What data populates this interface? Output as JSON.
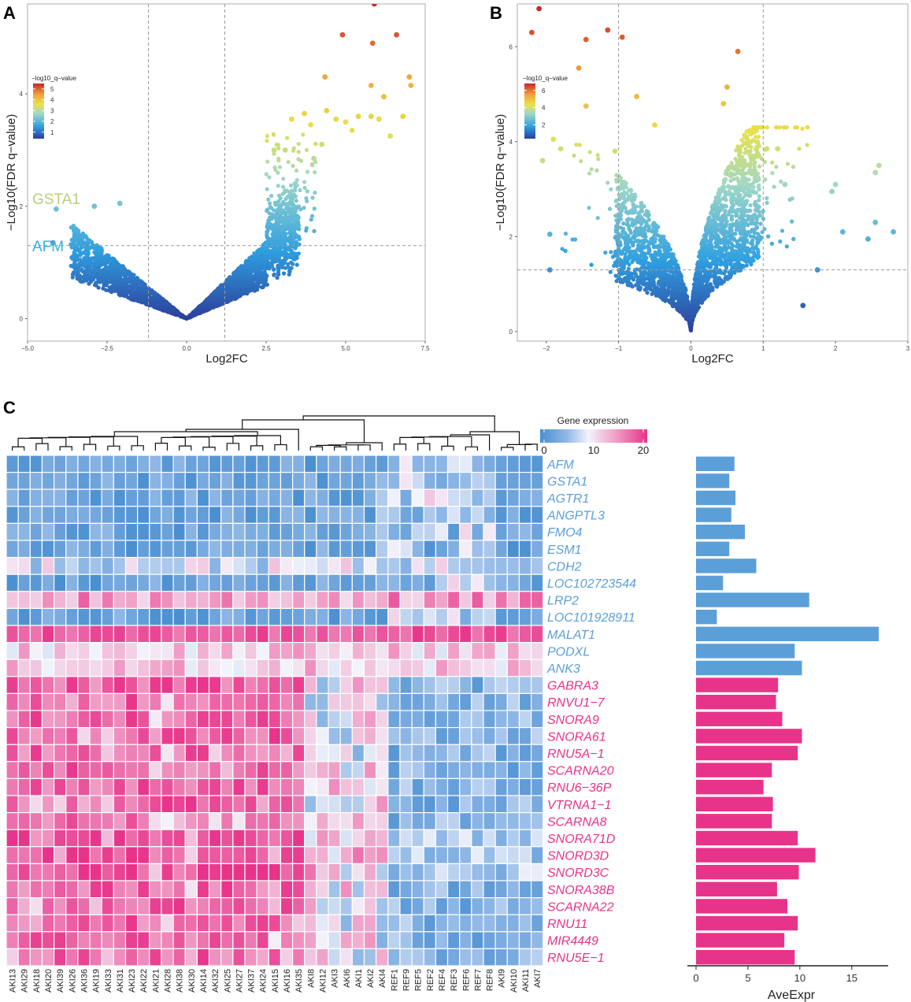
{
  "panels": {
    "a": {
      "label": "A"
    },
    "b": {
      "label": "B"
    },
    "c": {
      "label": "C"
    }
  },
  "chart_data": [
    {
      "id": "volcano_a",
      "type": "scatter",
      "xlabel": "Log2FC",
      "ylabel": "−Log10(FDR q−value)",
      "xlim": [
        -5.0,
        7.5
      ],
      "ylim": [
        -0.4,
        5.6
      ],
      "xticks": [
        -5.0,
        -2.5,
        0.0,
        2.5,
        5.0,
        7.5
      ],
      "xtick_labels": [
        "−5.0",
        "−2.5",
        "0.0",
        "2.5",
        "5.0",
        "7.5"
      ],
      "yticks": [
        0,
        2,
        4
      ],
      "fc_cutoffs": [
        -1.2,
        1.2
      ],
      "q_cutoff": 1.3,
      "legend": {
        "title": "−log10_q−value",
        "ticks": [
          5,
          4,
          3,
          2,
          1
        ],
        "range": [
          0.4,
          5.5
        ],
        "placement": "top-left"
      },
      "annotations": [
        {
          "text": "GSTA1",
          "x": -4.8,
          "y": 2.3,
          "color": "#b9cf7a"
        },
        {
          "text": "AFM",
          "x": -4.8,
          "y": 1.45,
          "color": "#3ab1e0"
        }
      ],
      "highlights": [
        {
          "x": 5.9,
          "y": 5.6
        },
        {
          "x": 6.6,
          "y": 5.05
        },
        {
          "x": 4.9,
          "y": 5.05
        },
        {
          "x": 5.85,
          "y": 4.9
        },
        {
          "x": 7.0,
          "y": 4.3
        },
        {
          "x": 7.05,
          "y": 4.15
        },
        {
          "x": 4.35,
          "y": 4.3
        },
        {
          "x": 5.8,
          "y": 4.15
        },
        {
          "x": 6.2,
          "y": 3.95
        },
        {
          "x": 6.05,
          "y": 3.55
        },
        {
          "x": 5.4,
          "y": 3.6
        },
        {
          "x": 4.4,
          "y": 3.7
        },
        {
          "x": 6.8,
          "y": 3.6
        },
        {
          "x": 5.8,
          "y": 3.6
        },
        {
          "x": 5.0,
          "y": 3.5
        },
        {
          "x": 4.7,
          "y": 3.55
        },
        {
          "x": 3.7,
          "y": 3.65
        },
        {
          "x": 3.3,
          "y": 3.55
        },
        {
          "x": 3.9,
          "y": 3.45
        },
        {
          "x": 6.4,
          "y": 3.25
        },
        {
          "x": 5.2,
          "y": 3.35
        },
        {
          "x": 4.25,
          "y": 3.1
        },
        {
          "x": 3.1,
          "y": 3.0
        },
        {
          "x": 2.75,
          "y": 3.0
        },
        {
          "x": 4.0,
          "y": 2.85
        },
        {
          "x": -2.1,
          "y": 2.05
        },
        {
          "x": -2.9,
          "y": 2.0
        },
        {
          "x": -4.1,
          "y": 1.95
        },
        {
          "x": -4.2,
          "y": 1.35
        }
      ]
    },
    {
      "id": "volcano_b",
      "type": "scatter",
      "xlabel": "Log2FC",
      "ylabel": "−Log10(FDR q−value)",
      "xlim": [
        -2.4,
        3.0
      ],
      "ylim": [
        -0.2,
        6.9
      ],
      "xticks": [
        -2,
        -1,
        0,
        1,
        2,
        3
      ],
      "xtick_labels": [
        "−2",
        "−1",
        "0",
        "1",
        "2",
        "3"
      ],
      "yticks": [
        0,
        2,
        4,
        6
      ],
      "fc_cutoffs": [
        -1,
        1
      ],
      "q_cutoff": 1.3,
      "legend": {
        "title": "−log10_q−value",
        "ticks": [
          6,
          4,
          2
        ],
        "range": [
          0.4,
          6.8
        ],
        "placement": "top-left"
      },
      "annotations": [],
      "highlights": [
        {
          "x": -2.1,
          "y": 6.8
        },
        {
          "x": -2.2,
          "y": 6.3
        },
        {
          "x": -1.45,
          "y": 6.15
        },
        {
          "x": -1.15,
          "y": 6.35
        },
        {
          "x": -0.95,
          "y": 6.2
        },
        {
          "x": -1.55,
          "y": 5.55
        },
        {
          "x": -0.75,
          "y": 4.95
        },
        {
          "x": -1.45,
          "y": 4.75
        },
        {
          "x": 0.65,
          "y": 5.9
        },
        {
          "x": 0.5,
          "y": 5.15
        },
        {
          "x": 0.45,
          "y": 4.8
        },
        {
          "x": -0.5,
          "y": 4.35
        },
        {
          "x": -1.05,
          "y": 3.8
        },
        {
          "x": -1.9,
          "y": 4.05
        },
        {
          "x": -1.8,
          "y": 3.85
        },
        {
          "x": -2.05,
          "y": 3.6
        },
        {
          "x": 1.2,
          "y": 3.85
        },
        {
          "x": 1.05,
          "y": 3.85
        },
        {
          "x": 2.6,
          "y": 3.5
        },
        {
          "x": 2.55,
          "y": 3.35
        },
        {
          "x": 2.0,
          "y": 3.1
        },
        {
          "x": 1.95,
          "y": 2.95
        },
        {
          "x": 1.3,
          "y": 3.1
        },
        {
          "x": 2.8,
          "y": 2.1
        },
        {
          "x": 2.55,
          "y": 2.3
        },
        {
          "x": 2.45,
          "y": 1.95
        },
        {
          "x": 2.1,
          "y": 2.1
        },
        {
          "x": -1.95,
          "y": 2.05
        },
        {
          "x": 1.75,
          "y": 1.3
        },
        {
          "x": 1.55,
          "y": 0.55
        },
        {
          "x": -1.95,
          "y": 1.3
        }
      ]
    },
    {
      "id": "heatmap_c",
      "type": "heatmap",
      "legend": {
        "title": "Gene expression",
        "ticks": [
          0,
          10,
          20
        ],
        "range": [
          0,
          20
        ]
      },
      "samples": [
        "AKI13",
        "AKI29",
        "AKI18",
        "AKI20",
        "AKI39",
        "AKI26",
        "AKI36",
        "AKI19",
        "AKI33",
        "AKI31",
        "AKI23",
        "AKI22",
        "AKI21",
        "AKI28",
        "AKI38",
        "AKI30",
        "AKI14",
        "AKI32",
        "AKI25",
        "AKI27",
        "AKI37",
        "AKI24",
        "AKI15",
        "AKI16",
        "AKI35",
        "AKI8",
        "AKI12",
        "AKI3",
        "AKI6",
        "AKI1",
        "AKI2",
        "AKI4",
        "REF1",
        "REF9",
        "REF5",
        "REF2",
        "REF4",
        "REF3",
        "REF6",
        "REF7",
        "REF8",
        "AKI9",
        "AKI10",
        "AKI11",
        "AKI7"
      ],
      "genes": [
        "AFM",
        "GSTA1",
        "AGTR1",
        "ANGPTL3",
        "FMO4",
        "ESM1",
        "CDH2",
        "LOC102723544",
        "LRP2",
        "LOC101928911",
        "MALAT1",
        "PODXL",
        "ANK3",
        "GABRA3",
        "RNVU1−7",
        "SNORA9",
        "SNORA61",
        "RNU5A−1",
        "SCARNA20",
        "RNU6−36P",
        "VTRNA1−1",
        "SCARNA8",
        "SNORA71D",
        "SNORD3D",
        "SNORD3C",
        "SNORA38B",
        "SCARNA22",
        "RNU11",
        "MIR4449",
        "RNU5E−1"
      ],
      "gene_groups": [
        "down",
        "down",
        "down",
        "down",
        "down",
        "down",
        "down",
        "down",
        "down",
        "down",
        "down",
        "down",
        "down",
        "up",
        "up",
        "up",
        "up",
        "up",
        "up",
        "up",
        "up",
        "up",
        "up",
        "up",
        "up",
        "up",
        "up",
        "up",
        "up",
        "up"
      ],
      "group_colors": {
        "down": "#5b9fd9",
        "up": "#e8338a"
      },
      "dendrogram": "hierarchical clustering of samples (drawn above heatmap)"
    },
    {
      "id": "bar_c",
      "type": "bar",
      "orientation": "horizontal",
      "categories": [
        "AFM",
        "GSTA1",
        "AGTR1",
        "ANGPTL3",
        "FMO4",
        "ESM1",
        "CDH2",
        "LOC102723544",
        "LRP2",
        "LOC101928911",
        "MALAT1",
        "PODXL",
        "ANK3",
        "GABRA3",
        "RNVU1−7",
        "SNORA9",
        "SNORA61",
        "RNU5A−1",
        "SCARNA20",
        "RNU6−36P",
        "VTRNA1−1",
        "SCARNA8",
        "SNORA71D",
        "SNORD3D",
        "SNORD3C",
        "SNORA38B",
        "SCARNA22",
        "RNU11",
        "MIR4449",
        "RNU5E−1"
      ],
      "values": [
        3.7,
        3.2,
        3.8,
        3.4,
        4.7,
        3.2,
        5.8,
        2.6,
        10.9,
        2.0,
        17.6,
        9.5,
        10.2,
        7.9,
        7.7,
        8.3,
        10.2,
        9.8,
        7.3,
        6.5,
        7.4,
        7.3,
        9.8,
        11.5,
        9.9,
        7.8,
        8.8,
        9.8,
        8.5,
        9.5
      ],
      "xlabel": "AveExpr",
      "xlim": [
        0,
        18.2
      ],
      "xticks": [
        0,
        5,
        10,
        15
      ]
    }
  ]
}
